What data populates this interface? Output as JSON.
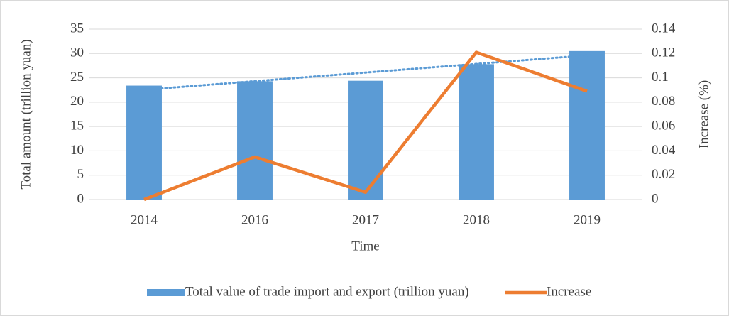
{
  "chart_data": {
    "type": "bar-line",
    "categories": [
      "2014",
      "2016",
      "2017",
      "2018",
      "2019"
    ],
    "series": [
      {
        "name": "Total value of trade import and export (trillion yuan)",
        "type": "bar",
        "color": "#5b9bd5",
        "values": [
          23.4,
          24.3,
          24.4,
          27.8,
          30.5
        ],
        "trendline": true
      },
      {
        "name": "Increase",
        "type": "line",
        "axis": "y2",
        "color": "#ed7d31",
        "values": [
          0,
          0.035,
          0.006,
          0.121,
          0.089
        ]
      }
    ],
    "xlabel": "Time",
    "ylabel": "Total amount (trillion yuan)",
    "y2label": "Increase (%)",
    "ylim": [
      0,
      35
    ],
    "yticks": [
      0,
      5,
      10,
      15,
      20,
      25,
      30,
      35
    ],
    "y2lim": [
      0,
      0.14
    ],
    "y2ticks": [
      0,
      0.02,
      0.04,
      0.06,
      0.08,
      0.1,
      0.12,
      0.14
    ],
    "grid": true,
    "legend": "bottom"
  }
}
